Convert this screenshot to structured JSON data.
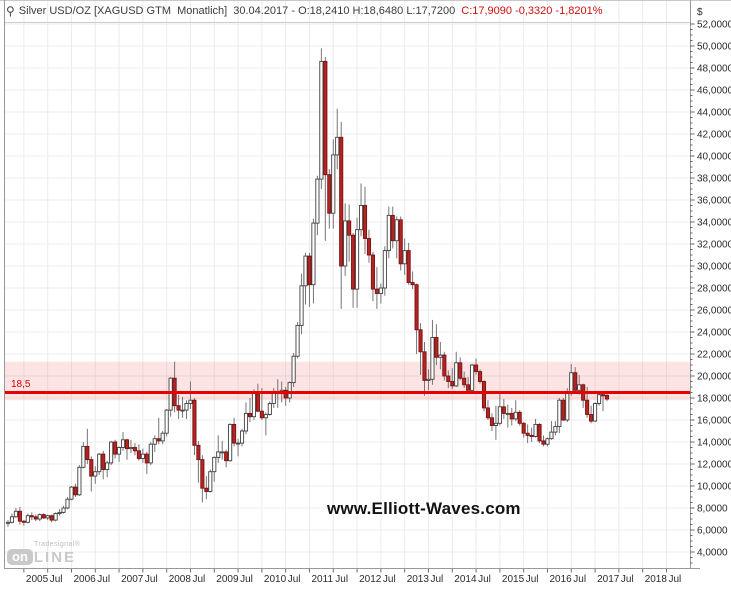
{
  "title_bar": {
    "instrument_icon": "⚲",
    "instrument": "Silver USD/OZ [XAGUSD GTM  Monatlich]",
    "quote": "30.04.2017 - O:18,2410 H:18,6480 L:17,7200",
    "quote_close": "C:17,9090 -0,3320 -1,8201%"
  },
  "y_axis": {
    "currency_symbol": "$",
    "tick_labels": [
      "52,0000",
      "50,0000",
      "48,0000",
      "46,0000",
      "44,0000",
      "42,0000",
      "40,0000",
      "38,0000",
      "36,0000",
      "34,0000",
      "32,0000",
      "30,0000",
      "28,0000",
      "26,0000",
      "24,0000",
      "22,0000",
      "20,0000",
      "18,0000",
      "16,0000",
      "14,0000",
      "12,0000",
      "10,0000",
      "8,0000",
      "6,0000",
      "4,0000"
    ]
  },
  "x_axis": {
    "tick_labels": [
      "2005",
      "Jul",
      "2006",
      "Jul",
      "2007",
      "Jul",
      "2008",
      "Jul",
      "2009",
      "Jul",
      "2010",
      "Jul",
      "2011",
      "Jul",
      "2012",
      "Jul",
      "2013",
      "Jul",
      "2014",
      "Jul",
      "2015",
      "Jul",
      "2016",
      "Jul",
      "2017",
      "Jul",
      "2018",
      "Jul"
    ]
  },
  "level_line": {
    "label": "18,5",
    "price": 18.5
  },
  "band": {
    "top_price": 21.3,
    "bottom_price": 17.8
  },
  "watermark": "www.Elliott-Waves.com",
  "logo": {
    "brand": "Tradesignal®",
    "box_text": "on",
    "suffix": "Line"
  },
  "colors": {
    "grid": "#ececec",
    "frame": "#989898",
    "tick": "#6a6a6a",
    "label_text": "#2b2b2b",
    "up_fill": "#ffffff",
    "up_border": "#404040",
    "down_fill": "#b32424",
    "down_border": "#7d1212",
    "wick": "#757575",
    "band_fill": "rgba(238,90,90,0.16)",
    "line_red": "#e60000",
    "title_red": "#cf0f0f"
  },
  "chart_data": {
    "type": "candlestick",
    "title": "Silver USD/OZ",
    "symbol": "XAGUSD GTM",
    "period": "Monatlich (monthly)",
    "currency": "$",
    "start_month": "2004-09",
    "end_month": "2017-04",
    "ylim": [
      2.5,
      52.1
    ],
    "y_tick_step": 2,
    "grid": true,
    "horizontal_line_price": 18.5,
    "highlight_band_price_range": [
      17.8,
      21.3
    ],
    "last_bar": {
      "date": "30.04.2017",
      "open": 18.241,
      "high": 18.648,
      "low": 17.72,
      "close": 17.909,
      "change": -0.332,
      "change_pct": -1.8201
    },
    "columns": [
      "open",
      "high",
      "low",
      "close"
    ],
    "candles": [
      [
        6.6,
        6.9,
        6.3,
        6.7
      ],
      [
        6.7,
        7.5,
        6.6,
        7.2
      ],
      [
        7.2,
        8.0,
        7.1,
        7.7
      ],
      [
        7.7,
        8.1,
        6.5,
        6.8
      ],
      [
        6.8,
        6.9,
        6.4,
        6.7
      ],
      [
        6.7,
        7.5,
        6.6,
        7.3
      ],
      [
        7.3,
        7.6,
        6.9,
        7.2
      ],
      [
        7.2,
        7.4,
        6.8,
        7.0
      ],
      [
        7.0,
        7.5,
        6.8,
        7.4
      ],
      [
        7.4,
        7.5,
        7.0,
        7.1
      ],
      [
        7.1,
        7.4,
        6.9,
        7.3
      ],
      [
        7.3,
        7.4,
        6.7,
        6.9
      ],
      [
        6.9,
        7.6,
        6.8,
        7.5
      ],
      [
        7.5,
        7.9,
        7.3,
        7.6
      ],
      [
        7.6,
        8.2,
        7.5,
        8.0
      ],
      [
        8.0,
        9.0,
        7.9,
        8.8
      ],
      [
        8.8,
        10.0,
        8.7,
        9.9
      ],
      [
        9.9,
        10.2,
        9.0,
        9.2
      ],
      [
        9.2,
        11.9,
        9.1,
        11.7
      ],
      [
        11.7,
        14.0,
        11.6,
        13.6
      ],
      [
        13.6,
        15.2,
        12.0,
        12.4
      ],
      [
        12.4,
        12.7,
        9.5,
        10.9
      ],
      [
        10.9,
        11.8,
        10.2,
        11.3
      ],
      [
        11.3,
        13.0,
        11.0,
        12.9
      ],
      [
        12.9,
        13.2,
        10.6,
        11.5
      ],
      [
        11.5,
        12.3,
        10.8,
        12.1
      ],
      [
        12.1,
        14.1,
        11.9,
        14.0
      ],
      [
        14.0,
        14.2,
        12.5,
        12.9
      ],
      [
        12.9,
        13.6,
        12.2,
        13.5
      ],
      [
        13.5,
        14.9,
        13.2,
        14.2
      ],
      [
        14.2,
        14.3,
        12.4,
        13.4
      ],
      [
        13.4,
        14.2,
        13.0,
        13.5
      ],
      [
        13.5,
        13.9,
        12.8,
        13.2
      ],
      [
        13.2,
        13.8,
        12.3,
        12.5
      ],
      [
        12.5,
        13.4,
        12.1,
        12.9
      ],
      [
        12.9,
        13.1,
        11.1,
        12.1
      ],
      [
        12.1,
        14.0,
        11.9,
        13.8
      ],
      [
        13.8,
        14.6,
        13.1,
        14.3
      ],
      [
        14.3,
        16.2,
        13.8,
        14.1
      ],
      [
        14.1,
        15.0,
        13.8,
        14.8
      ],
      [
        14.8,
        17.0,
        14.5,
        16.9
      ],
      [
        16.9,
        19.9,
        16.3,
        19.8
      ],
      [
        19.8,
        21.3,
        16.7,
        17.3
      ],
      [
        17.3,
        18.3,
        16.1,
        16.9
      ],
      [
        16.9,
        18.1,
        16.2,
        16.9
      ],
      [
        16.9,
        17.8,
        16.1,
        17.5
      ],
      [
        17.5,
        19.5,
        17.0,
        17.8
      ],
      [
        17.8,
        18.0,
        12.8,
        13.7
      ],
      [
        13.7,
        14.1,
        10.3,
        12.4
      ],
      [
        12.4,
        12.8,
        8.5,
        9.8
      ],
      [
        9.8,
        10.9,
        8.8,
        9.5
      ],
      [
        9.5,
        11.5,
        9.4,
        11.3
      ],
      [
        11.3,
        12.7,
        10.4,
        12.6
      ],
      [
        12.6,
        14.6,
        12.1,
        13.1
      ],
      [
        13.1,
        14.1,
        12.4,
        13.1
      ],
      [
        13.1,
        13.3,
        11.7,
        12.3
      ],
      [
        12.3,
        15.7,
        12.2,
        15.6
      ],
      [
        15.6,
        16.2,
        13.6,
        13.9
      ],
      [
        13.9,
        14.3,
        12.7,
        13.9
      ],
      [
        13.9,
        15.2,
        13.6,
        15.0
      ],
      [
        15.0,
        17.6,
        14.7,
        16.6
      ],
      [
        16.6,
        18.0,
        15.8,
        16.3
      ],
      [
        16.3,
        18.8,
        16.0,
        18.4
      ],
      [
        18.4,
        19.3,
        16.7,
        16.8
      ],
      [
        16.8,
        18.9,
        16.0,
        16.2
      ],
      [
        16.2,
        16.7,
        14.6,
        16.5
      ],
      [
        16.5,
        17.7,
        16.4,
        17.5
      ],
      [
        17.5,
        18.9,
        17.1,
        18.6
      ],
      [
        18.6,
        19.7,
        17.1,
        18.4
      ],
      [
        18.4,
        19.5,
        17.6,
        18.7
      ],
      [
        18.7,
        19.0,
        17.3,
        18.0
      ],
      [
        18.0,
        19.5,
        17.6,
        19.4
      ],
      [
        19.4,
        22.1,
        19.0,
        21.8
      ],
      [
        21.8,
        24.9,
        21.6,
        24.6
      ],
      [
        24.6,
        29.3,
        23.8,
        28.2
      ],
      [
        28.2,
        31.2,
        26.5,
        30.9
      ],
      [
        30.9,
        31.2,
        26.3,
        28.3
      ],
      [
        28.3,
        34.3,
        26.6,
        33.9
      ],
      [
        33.9,
        38.2,
        32.8,
        37.9
      ],
      [
        37.9,
        49.8,
        37.0,
        48.6
      ],
      [
        48.6,
        49.0,
        32.3,
        38.3
      ],
      [
        38.3,
        38.8,
        33.4,
        34.8
      ],
      [
        34.8,
        41.5,
        33.4,
        40.1
      ],
      [
        40.1,
        44.3,
        38.8,
        41.7
      ],
      [
        41.7,
        43.1,
        26.1,
        30.0
      ],
      [
        30.0,
        35.7,
        29.1,
        34.1
      ],
      [
        34.1,
        35.6,
        30.4,
        32.8
      ],
      [
        32.8,
        33.0,
        26.2,
        27.9
      ],
      [
        27.9,
        34.4,
        26.2,
        33.3
      ],
      [
        33.3,
        37.5,
        32.7,
        35.5
      ],
      [
        35.5,
        37.2,
        31.1,
        32.5
      ],
      [
        32.5,
        33.3,
        30.3,
        31.0
      ],
      [
        31.0,
        31.3,
        26.8,
        27.9
      ],
      [
        27.9,
        29.9,
        26.1,
        27.5
      ],
      [
        27.5,
        28.4,
        26.6,
        28.0
      ],
      [
        28.0,
        31.8,
        27.3,
        31.4
      ],
      [
        31.4,
        35.4,
        30.7,
        34.6
      ],
      [
        34.6,
        35.4,
        31.6,
        32.3
      ],
      [
        32.3,
        34.5,
        30.7,
        34.2
      ],
      [
        34.2,
        34.5,
        29.6,
        30.2
      ],
      [
        30.2,
        32.5,
        29.2,
        31.4
      ],
      [
        31.4,
        32.1,
        28.3,
        28.5
      ],
      [
        28.5,
        29.5,
        27.9,
        28.3
      ],
      [
        28.3,
        28.4,
        22.0,
        24.2
      ],
      [
        24.2,
        24.8,
        20.1,
        22.2
      ],
      [
        22.2,
        23.1,
        18.2,
        19.6
      ],
      [
        19.6,
        20.6,
        18.7,
        19.7
      ],
      [
        19.7,
        25.1,
        19.2,
        23.5
      ],
      [
        23.5,
        24.7,
        21.0,
        21.7
      ],
      [
        21.7,
        23.1,
        20.6,
        21.9
      ],
      [
        21.9,
        22.2,
        19.6,
        20.0
      ],
      [
        20.0,
        20.5,
        18.9,
        19.5
      ],
      [
        19.5,
        20.7,
        18.8,
        19.1
      ],
      [
        19.1,
        22.2,
        19.0,
        21.2
      ],
      [
        21.2,
        21.7,
        19.6,
        19.8
      ],
      [
        19.8,
        20.4,
        18.9,
        19.2
      ],
      [
        19.2,
        19.9,
        18.7,
        18.7
      ],
      [
        18.7,
        21.1,
        18.6,
        21.0
      ],
      [
        21.0,
        21.6,
        20.1,
        20.4
      ],
      [
        20.4,
        20.6,
        19.3,
        19.5
      ],
      [
        19.5,
        19.6,
        16.8,
        17.1
      ],
      [
        17.1,
        17.8,
        16.0,
        16.2
      ],
      [
        16.2,
        16.6,
        15.0,
        15.5
      ],
      [
        15.5,
        17.3,
        14.2,
        15.7
      ],
      [
        15.7,
        18.5,
        15.5,
        17.2
      ],
      [
        17.2,
        17.9,
        16.1,
        16.6
      ],
      [
        16.6,
        17.4,
        15.3,
        16.6
      ],
      [
        16.6,
        17.1,
        15.5,
        16.1
      ],
      [
        16.1,
        17.8,
        15.9,
        16.7
      ],
      [
        16.7,
        16.9,
        15.5,
        15.7
      ],
      [
        15.7,
        15.8,
        14.4,
        14.8
      ],
      [
        14.8,
        15.6,
        13.9,
        14.6
      ],
      [
        14.6,
        15.3,
        14.0,
        14.5
      ],
      [
        14.5,
        16.1,
        14.4,
        15.6
      ],
      [
        15.6,
        15.7,
        13.9,
        14.1
      ],
      [
        14.1,
        14.6,
        13.6,
        13.8
      ],
      [
        13.8,
        14.4,
        13.6,
        14.3
      ],
      [
        14.3,
        15.9,
        14.2,
        14.9
      ],
      [
        14.9,
        15.9,
        14.6,
        15.4
      ],
      [
        15.4,
        18.0,
        14.8,
        17.8
      ],
      [
        17.8,
        18.0,
        15.9,
        16.0
      ],
      [
        16.0,
        18.9,
        15.8,
        18.4
      ],
      [
        18.4,
        21.1,
        18.2,
        20.3
      ],
      [
        20.3,
        20.8,
        18.4,
        18.7
      ],
      [
        18.7,
        20.1,
        18.3,
        19.2
      ],
      [
        19.2,
        19.3,
        17.1,
        17.8
      ],
      [
        17.8,
        19.0,
        16.2,
        16.5
      ],
      [
        16.5,
        17.3,
        15.7,
        15.9
      ],
      [
        15.9,
        17.6,
        15.8,
        17.5
      ],
      [
        17.5,
        18.5,
        17.3,
        18.3
      ],
      [
        18.3,
        18.5,
        16.8,
        18.2
      ],
      [
        18.241,
        18.648,
        17.72,
        17.909
      ]
    ]
  }
}
